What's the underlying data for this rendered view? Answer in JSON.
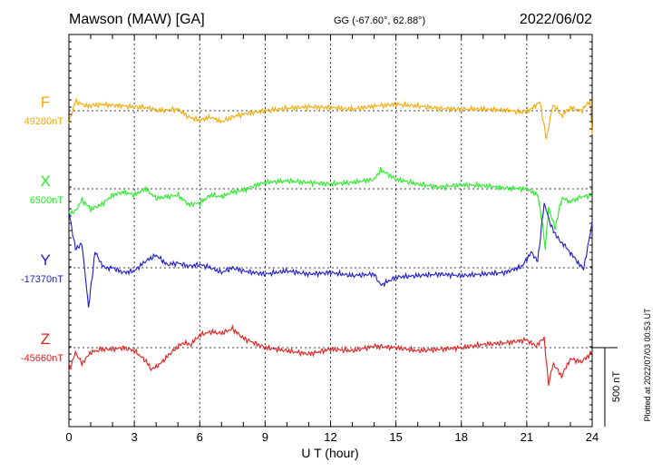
{
  "chart_data": {
    "type": "line",
    "title": "Mawson (MAW)  [GA]",
    "coords": "GG (-67.60°,  62.88°)",
    "date": "2022/06/02",
    "xlabel": "U T (hour)",
    "xlim": [
      0,
      24
    ],
    "xticks": [
      0,
      3,
      6,
      9,
      12,
      15,
      18,
      21,
      24
    ],
    "xtick_labels": [
      "0",
      "3",
      "6",
      "9",
      "12",
      "15",
      "18",
      "21",
      "24"
    ],
    "grid": true,
    "scale_bar": {
      "label": "500 nT",
      "value_nT": 500
    },
    "plotted_note": "Plotted at 2022/07/03 00:53 UT",
    "series": [
      {
        "name": "F",
        "baseline_label": "49280nT",
        "baseline_nT": 49280,
        "color": "#f5a800",
        "x": [
          0,
          0.3,
          0.8,
          1.5,
          2.5,
          3.5,
          4.2,
          5.0,
          5.5,
          6.0,
          6.5,
          7.0,
          7.5,
          8.0,
          9.0,
          10.0,
          11.0,
          12.0,
          13.0,
          14.0,
          15.0,
          16.0,
          17.0,
          18.0,
          19.0,
          20.0,
          20.8,
          21.2,
          21.6,
          21.9,
          22.2,
          22.6,
          23.0,
          23.5,
          23.9,
          24.0
        ],
        "delta": [
          -80,
          60,
          30,
          40,
          30,
          20,
          0,
          10,
          -40,
          -60,
          -40,
          -70,
          -40,
          -20,
          0,
          15,
          25,
          20,
          10,
          30,
          40,
          30,
          15,
          10,
          10,
          5,
          -10,
          10,
          60,
          -180,
          40,
          -30,
          20,
          0,
          60,
          -150
        ]
      },
      {
        "name": "X",
        "baseline_label": "6500nT",
        "baseline_nT": 6500,
        "color": "#22ee22",
        "x": [
          0,
          0.3,
          0.6,
          1.0,
          1.5,
          2.0,
          2.5,
          3.0,
          3.5,
          4.0,
          4.5,
          5.0,
          5.5,
          6.0,
          6.5,
          7.0,
          7.5,
          8.0,
          8.5,
          9.0,
          10.0,
          11.0,
          12.0,
          13.0,
          14.0,
          14.3,
          15.0,
          16.0,
          17.0,
          18.0,
          19.0,
          20.0,
          21.0,
          21.5,
          21.7,
          21.85,
          22.0,
          22.3,
          22.6,
          23.0,
          23.5,
          24.0
        ],
        "delta": [
          -160,
          -140,
          -70,
          -130,
          -100,
          -40,
          -20,
          -40,
          0,
          -60,
          -50,
          -40,
          -100,
          -90,
          -40,
          -50,
          -20,
          -10,
          20,
          40,
          50,
          40,
          30,
          40,
          60,
          120,
          60,
          30,
          10,
          25,
          20,
          5,
          0,
          -40,
          -200,
          -380,
          -120,
          -250,
          -60,
          -80,
          -50,
          -40
        ]
      },
      {
        "name": "Y",
        "baseline_label": "-17370nT",
        "baseline_nT": -17370,
        "color": "#1a1ad6",
        "x": [
          0,
          0.3,
          0.6,
          0.9,
          1.2,
          1.6,
          2.0,
          2.5,
          3.0,
          3.5,
          4.0,
          4.5,
          5.0,
          5.5,
          6.0,
          6.5,
          7.0,
          7.5,
          8.0,
          9.0,
          10.0,
          11.0,
          12.0,
          13.0,
          14.0,
          14.3,
          15.0,
          16.0,
          17.0,
          18.0,
          19.0,
          20.0,
          20.8,
          21.2,
          21.5,
          21.8,
          22.1,
          22.4,
          22.8,
          23.2,
          23.6,
          24.0
        ],
        "delta": [
          350,
          120,
          150,
          -250,
          100,
          0,
          0,
          -30,
          -20,
          40,
          80,
          20,
          30,
          10,
          20,
          0,
          -30,
          0,
          -20,
          -40,
          -20,
          -40,
          -30,
          -50,
          -40,
          -110,
          -60,
          -50,
          -40,
          -50,
          -40,
          -30,
          10,
          100,
          40,
          410,
          270,
          190,
          130,
          60,
          -10,
          280
        ]
      },
      {
        "name": "Z",
        "baseline_label": "-45660nT",
        "baseline_nT": -45660,
        "color": "#e81c1c",
        "x": [
          0,
          0.3,
          0.6,
          1.0,
          1.5,
          2.0,
          2.5,
          3.0,
          3.5,
          3.8,
          4.2,
          4.7,
          5.2,
          5.6,
          6.0,
          6.5,
          7.0,
          7.5,
          8.0,
          8.5,
          9.0,
          10.0,
          11.0,
          12.0,
          13.0,
          14.0,
          15.0,
          16.0,
          17.0,
          18.0,
          19.0,
          20.0,
          21.0,
          21.4,
          21.8,
          22.0,
          22.2,
          22.6,
          23.0,
          23.5,
          24.0
        ],
        "delta": [
          -150,
          -30,
          -100,
          -30,
          -10,
          -10,
          0,
          -20,
          -80,
          -140,
          -100,
          -30,
          30,
          20,
          80,
          100,
          90,
          120,
          60,
          30,
          0,
          -20,
          -40,
          -10,
          -20,
          10,
          0,
          -20,
          -10,
          0,
          20,
          30,
          50,
          10,
          60,
          -240,
          -100,
          -180,
          -70,
          -90,
          -30
        ]
      }
    ]
  }
}
